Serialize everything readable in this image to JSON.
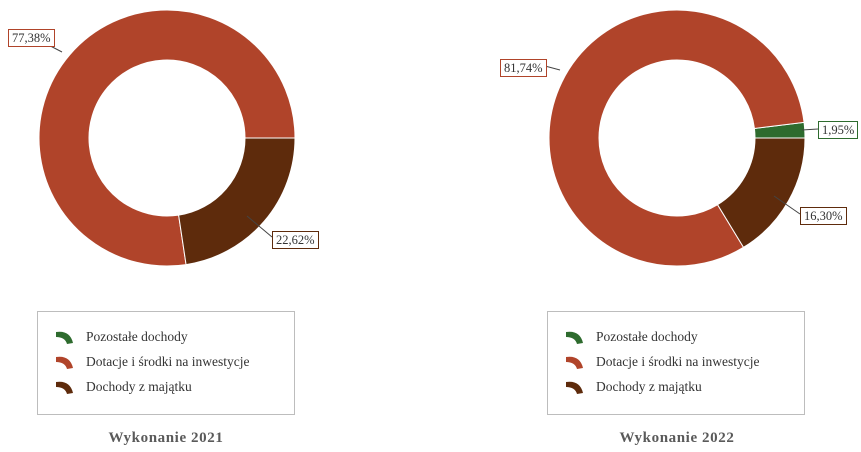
{
  "chart_data": [
    {
      "type": "pie",
      "title": "Wykonanie 2021",
      "donut": true,
      "legend_position": "bottom",
      "categories": [
        "Pozostałe dochody",
        "Dotacje i środki na inwestycje",
        "Dochody z majątku"
      ],
      "colors": [
        "#2e6b2e",
        "#b0442a",
        "#5e2b0c"
      ],
      "values": [
        0,
        77.38,
        22.62
      ],
      "labels": [
        "",
        "77,38%",
        "22,62%"
      ]
    },
    {
      "type": "pie",
      "title": "Wykonanie 2022",
      "donut": true,
      "legend_position": "bottom",
      "categories": [
        "Pozostałe dochody",
        "Dotacje i środki na inwestycje",
        "Dochody z majątku"
      ],
      "colors": [
        "#2e6b2e",
        "#b0442a",
        "#5e2b0c"
      ],
      "values": [
        1.95,
        81.74,
        16.3
      ],
      "labels": [
        "1,95%",
        "81,74%",
        "16,30%"
      ]
    }
  ]
}
